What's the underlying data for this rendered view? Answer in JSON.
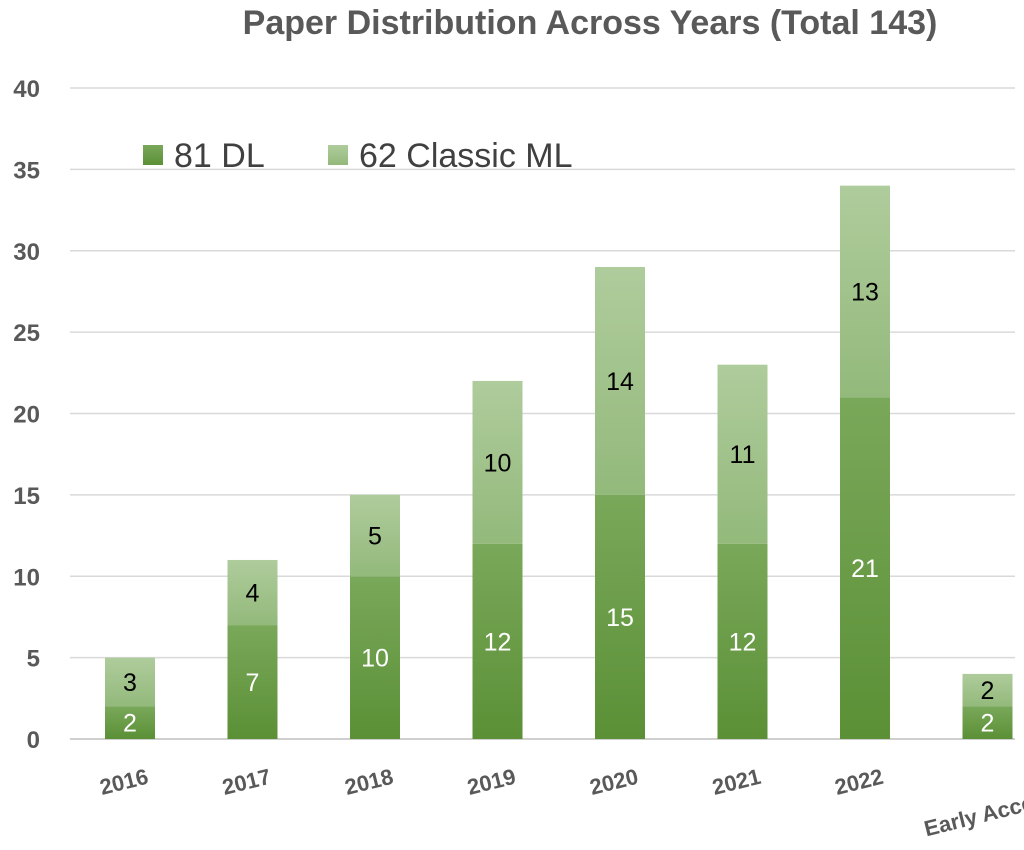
{
  "chart_data": {
    "type": "bar",
    "stacked": true,
    "title": "Paper Distribution Across Years (Total 143)",
    "categories": [
      "2016",
      "2017",
      "2018",
      "2019",
      "2020",
      "2021",
      "2022",
      "Early Access"
    ],
    "series": [
      {
        "name": "81 DL",
        "values": [
          2,
          7,
          10,
          12,
          15,
          12,
          21,
          2
        ],
        "color": "#639a3d",
        "label_color": "#ffffff"
      },
      {
        "name": "62 Classic ML",
        "values": [
          3,
          4,
          5,
          10,
          14,
          11,
          13,
          2
        ],
        "color": "#a9c796",
        "label_color": "#000000"
      }
    ],
    "ylim": [
      0,
      40
    ],
    "yticks": [
      0,
      5,
      10,
      15,
      20,
      25,
      30,
      35,
      40
    ],
    "grid": true,
    "legend": "top-left",
    "data_labels": true
  }
}
